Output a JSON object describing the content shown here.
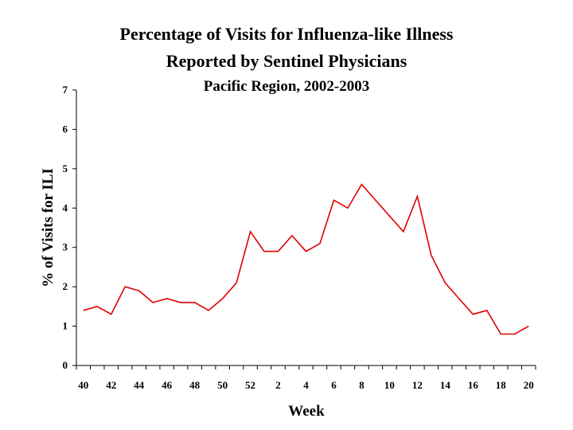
{
  "chart_data": {
    "type": "line",
    "title": "Percentage of Visits for Influenza-like Illness",
    "subtitle": "Reported by Sentinel Physicians",
    "subtitle2": "Pacific Region, 2002-2003",
    "xlabel": "Week",
    "ylabel": "% of Visits for ILI",
    "ylim": [
      0,
      7
    ],
    "yticks": [
      0,
      1,
      2,
      3,
      4,
      5,
      6,
      7
    ],
    "x": [
      40,
      41,
      42,
      43,
      44,
      45,
      46,
      47,
      48,
      49,
      50,
      51,
      52,
      1,
      2,
      3,
      4,
      5,
      6,
      7,
      8,
      9,
      10,
      11,
      12,
      13,
      14,
      15,
      16,
      17,
      18,
      19,
      20
    ],
    "xtick_labels": [
      "40",
      "42",
      "44",
      "46",
      "48",
      "50",
      "52",
      "2",
      "4",
      "6",
      "8",
      "10",
      "12",
      "14",
      "16",
      "18",
      "20"
    ],
    "series": [
      {
        "color": "#e00000",
        "values": [
          1.4,
          1.5,
          1.3,
          2.0,
          1.9,
          1.6,
          1.7,
          1.6,
          1.6,
          1.4,
          1.7,
          2.1,
          3.4,
          2.9,
          2.9,
          3.3,
          2.9,
          3.1,
          4.2,
          4.0,
          4.6,
          4.2,
          3.8,
          3.4,
          4.3,
          2.8,
          2.1,
          1.7,
          1.3,
          1.4,
          0.8,
          0.8,
          1.0
        ]
      }
    ],
    "grid": false,
    "legend": "none"
  }
}
